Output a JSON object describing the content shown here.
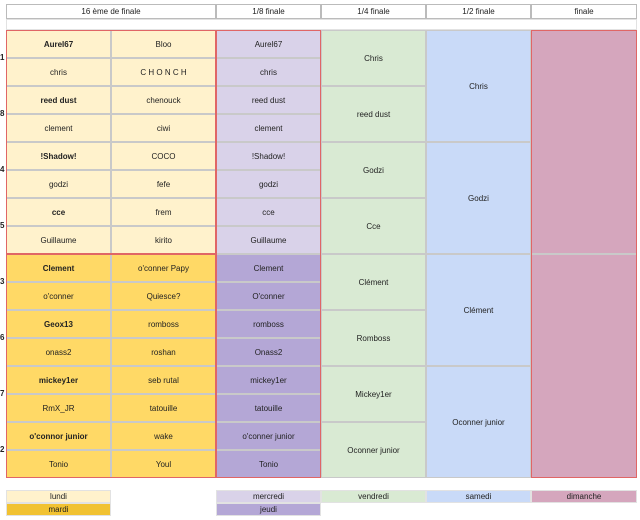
{
  "headers": [
    "16 ème de finale",
    "1/8 finale",
    "1/4 finale",
    "1/2 finale",
    "finale"
  ],
  "seeds": [
    "1",
    "8",
    "4",
    "5",
    "3",
    "6",
    "7",
    "2"
  ],
  "round16": [
    [
      "Aurel67",
      "Bloo"
    ],
    [
      "chris",
      "C H O N C H"
    ],
    [
      "reed dust",
      "chenouck"
    ],
    [
      "clement",
      "ciwi"
    ],
    [
      "!Shadow!",
      "COCO"
    ],
    [
      "godzi",
      "fefe"
    ],
    [
      "cce",
      "frem"
    ],
    [
      "Guillaume",
      "kirito"
    ],
    [
      "Clement",
      "o'conner Papy"
    ],
    [
      "o'conner",
      "Quiesce?"
    ],
    [
      "Geox13",
      "romboss"
    ],
    [
      "onass2",
      "roshan"
    ],
    [
      "mickey1er",
      "seb rutal"
    ],
    [
      "RmX_JR",
      "tatouille"
    ],
    [
      "o'connor junior",
      "wake"
    ],
    [
      "Tonio",
      "Youl"
    ]
  ],
  "round8": [
    "Aurel67",
    "chris",
    "reed dust",
    "clement",
    "!Shadow!",
    "godzi",
    "cce",
    "Guillaume",
    "Clement",
    "O'conner",
    "romboss",
    "Onass2",
    "mickey1er",
    "tatouille",
    "o'conner junior",
    "Tonio"
  ],
  "quarter": [
    "Chris",
    "reed dust",
    "Godzi",
    "Cce",
    "Clément",
    "Romboss",
    "Mickey1er",
    "Oconner junior"
  ],
  "semi": [
    "Chris",
    "Godzi",
    "Clément",
    "Oconner junior"
  ],
  "final": [
    "",
    ""
  ],
  "legend": {
    "lundi": "lundi",
    "mardi": "mardi",
    "mercredi": "mercredi",
    "jeudi": "jeudi",
    "vendredi": "vendredi",
    "samedi": "samedi",
    "dimanche": "dimanche"
  },
  "colors": {
    "yellow_light": "#fff2cc",
    "yellow_dark": "#ffd966",
    "purple_light": "#d9d2e9",
    "purple_dark": "#b4a7d6",
    "green": "#d9ead3",
    "blue": "#c9daf8",
    "pink": "#d5a6bd",
    "mardi_legend": "#f1c232",
    "red_border": "#e06666"
  }
}
